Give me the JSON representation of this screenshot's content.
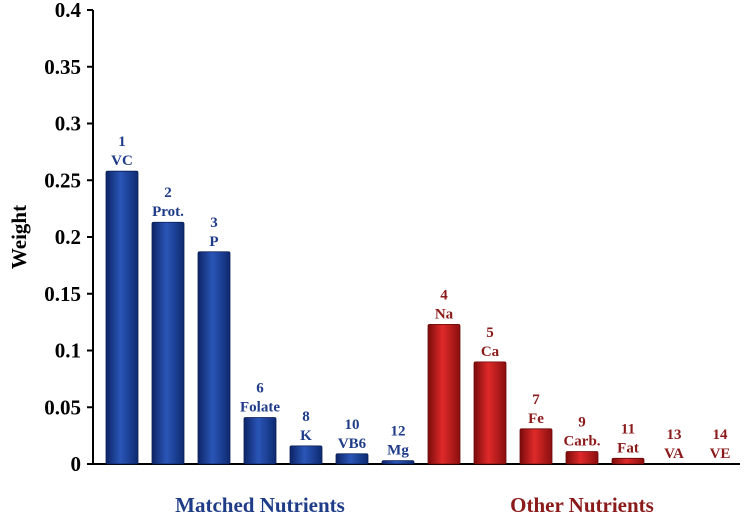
{
  "chart_data": {
    "type": "bar",
    "title": "",
    "xlabel": "",
    "ylabel": "Weight",
    "ylim": [
      0,
      0.4
    ],
    "yticks": [
      "0",
      "0.05",
      "0.1",
      "0.15",
      "0.2",
      "0.25",
      "0.3",
      "0.35",
      "0.4"
    ],
    "grid": false,
    "groups": [
      {
        "name": "Matched Nutrients",
        "color": "#1f3c88",
        "label_color": "#1f3c88",
        "bars": [
          {
            "rank": "1",
            "label": "VC",
            "value": 0.258
          },
          {
            "rank": "2",
            "label": "Prot.",
            "value": 0.213
          },
          {
            "rank": "3",
            "label": "P",
            "value": 0.187
          },
          {
            "rank": "6",
            "label": "Folate",
            "value": 0.041
          },
          {
            "rank": "8",
            "label": "K",
            "value": 0.016
          },
          {
            "rank": "10",
            "label": "VB6",
            "value": 0.009
          },
          {
            "rank": "12",
            "label": "Mg",
            "value": 0.003
          }
        ]
      },
      {
        "name": "Other Nutrients",
        "color": "#c21b1b",
        "label_color": "#8b1a1a",
        "bars": [
          {
            "rank": "4",
            "label": "Na",
            "value": 0.123
          },
          {
            "rank": "5",
            "label": "Ca",
            "value": 0.09
          },
          {
            "rank": "7",
            "label": "Fe",
            "value": 0.031
          },
          {
            "rank": "9",
            "label": "Carb.",
            "value": 0.011
          },
          {
            "rank": "11",
            "label": "Fat",
            "value": 0.005
          },
          {
            "rank": "13",
            "label": "VA",
            "value": 0.0
          },
          {
            "rank": "14",
            "label": "VE",
            "value": 0.0
          }
        ]
      }
    ]
  }
}
